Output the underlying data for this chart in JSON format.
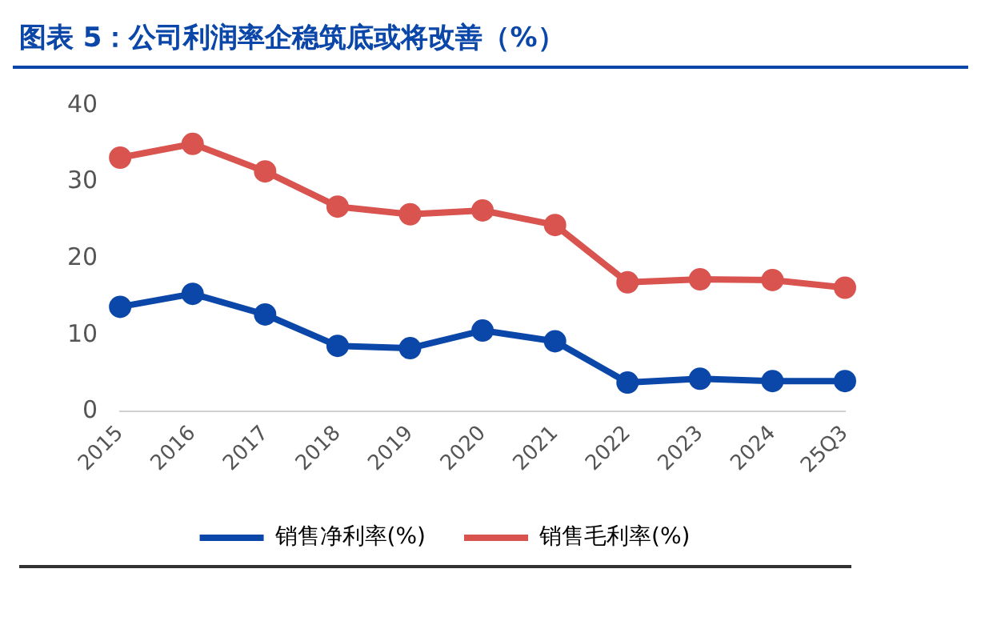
{
  "chart_data": {
    "type": "line",
    "title": "图表 5：公司利润率企稳筑底或将改善（%）",
    "categories": [
      "2015",
      "2016",
      "2017",
      "2018",
      "2019",
      "2020",
      "2021",
      "2022",
      "2023",
      "2024",
      "25Q3"
    ],
    "series": [
      {
        "name": "销售净利率(%)",
        "color": "#0a47a8",
        "values": [
          13.7,
          15.4,
          12.7,
          8.6,
          8.3,
          10.6,
          9.2,
          3.8,
          4.3,
          4.0,
          4.0
        ]
      },
      {
        "name": "销售毛利率(%)",
        "color": "#d9534f",
        "values": [
          33.2,
          35.0,
          31.4,
          26.8,
          25.8,
          26.3,
          24.4,
          16.9,
          17.3,
          17.2,
          16.2
        ]
      }
    ],
    "ylim": [
      0,
      40
    ],
    "yticks": [
      0,
      10,
      20,
      30,
      40
    ],
    "grid": false,
    "legend": "bottom",
    "marker": "circle",
    "line_style": "solid"
  }
}
